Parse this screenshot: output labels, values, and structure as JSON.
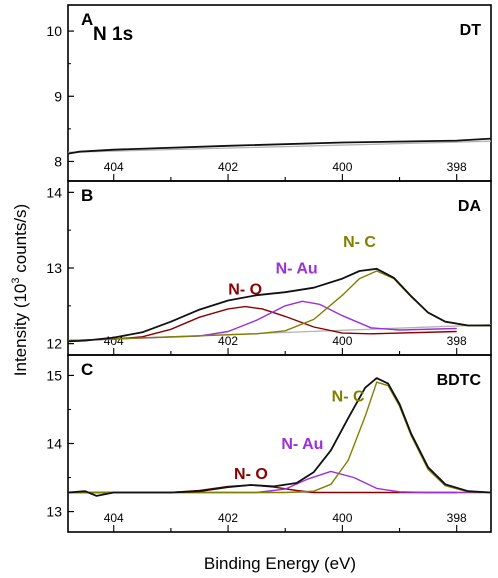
{
  "chart_data": {
    "type": "line",
    "figure_title": "N 1s",
    "xlabel": "Binding Energy (eV)",
    "ylabel_pre": "Intensity (10",
    "ylabel_sup": "3",
    "ylabel_post": " counts/s)",
    "x_reversed": true,
    "xlim": [
      404.8,
      397.4
    ],
    "x_ticks": [
      404,
      402,
      400,
      398
    ],
    "colors": {
      "envelope": "#111111",
      "baseline": "#b4b4b4",
      "N-O": "#8b0000",
      "N-Au": "#9b30d9",
      "N-C": "#808000"
    },
    "panels": [
      {
        "letter": "A",
        "label": "DT",
        "ylim": [
          7.7,
          10.4
        ],
        "y_ticks": [
          8,
          9,
          10
        ],
        "annotations": [],
        "series": [
          {
            "name": "envelope",
            "x": [
              404.8,
              404.6,
              404.0,
              402.0,
              400.0,
              398.0,
              397.4
            ],
            "y": [
              8.12,
              8.15,
              8.18,
              8.24,
              8.29,
              8.32,
              8.35
            ]
          },
          {
            "name": "baseline",
            "x": [
              404.8,
              397.4
            ],
            "y": [
              8.14,
              8.31
            ]
          }
        ]
      },
      {
        "letter": "B",
        "label": "DA",
        "ylim": [
          11.85,
          14.15
        ],
        "y_ticks": [
          12,
          13,
          14
        ],
        "annotations": [
          {
            "text": "N- O",
            "x": 401.7,
            "y": 12.65,
            "color": "#8b0000"
          },
          {
            "text": "N- Au",
            "x": 400.8,
            "y": 12.93,
            "color": "#9b30d9"
          },
          {
            "text": "N- C",
            "x": 399.7,
            "y": 13.28,
            "color": "#808000"
          }
        ],
        "series": [
          {
            "name": "envelope",
            "x": [
              404.8,
              404.5,
              404.0,
              403.5,
              403.0,
              402.5,
              402.0,
              401.5,
              401.0,
              400.5,
              400.0,
              399.7,
              399.4,
              399.1,
              398.8,
              398.5,
              398.2,
              397.8,
              397.4
            ],
            "y": [
              12.03,
              12.04,
              12.08,
              12.15,
              12.29,
              12.45,
              12.57,
              12.64,
              12.68,
              12.74,
              12.86,
              12.96,
              12.99,
              12.87,
              12.63,
              12.41,
              12.29,
              12.24,
              12.24
            ]
          },
          {
            "name": "baseline",
            "x": [
              404.8,
              397.4
            ],
            "y": [
              12.04,
              12.25
            ]
          },
          {
            "name": "N-O",
            "x": [
              404.8,
              404.0,
              403.5,
              403.0,
              402.5,
              402.0,
              401.7,
              401.4,
              401.0,
              400.5,
              400.0,
              399.5,
              398.0
            ],
            "y": [
              12.04,
              12.06,
              12.09,
              12.19,
              12.35,
              12.46,
              12.49,
              12.46,
              12.36,
              12.22,
              12.14,
              12.13,
              12.16
            ]
          },
          {
            "name": "N-Au",
            "x": [
              404.8,
              402.5,
              402.0,
              401.5,
              401.0,
              400.7,
              400.4,
              400.0,
              399.5,
              399.0,
              398.0
            ],
            "y": [
              12.04,
              12.1,
              12.16,
              12.31,
              12.5,
              12.56,
              12.52,
              12.37,
              12.21,
              12.18,
              12.2
            ]
          },
          {
            "name": "N-C",
            "x": [
              404.8,
              401.5,
              401.0,
              400.5,
              400.0,
              399.7,
              399.4,
              399.1,
              398.8,
              398.5,
              398.2,
              397.8,
              397.4
            ],
            "y": [
              12.04,
              12.13,
              12.17,
              12.32,
              12.64,
              12.86,
              12.96,
              12.86,
              12.62,
              12.41,
              12.29,
              12.24,
              12.24
            ]
          }
        ]
      },
      {
        "letter": "C",
        "label": "BDTC",
        "ylim": [
          12.7,
          15.3
        ],
        "y_ticks": [
          13,
          14,
          15
        ],
        "annotations": [
          {
            "text": "N- O",
            "x": 401.6,
            "y": 13.48,
            "color": "#8b0000"
          },
          {
            "text": "N- Au",
            "x": 400.7,
            "y": 13.92,
            "color": "#9b30d9"
          },
          {
            "text": "N- C",
            "x": 399.9,
            "y": 14.62,
            "color": "#808000"
          }
        ],
        "series": [
          {
            "name": "envelope",
            "x": [
              404.8,
              404.5,
              404.3,
              404.0,
              403.0,
              402.5,
              402.0,
              401.6,
              401.2,
              400.8,
              400.5,
              400.2,
              399.9,
              399.6,
              399.4,
              399.2,
              399.0,
              398.8,
              398.5,
              398.2,
              397.8,
              397.4
            ],
            "y": [
              13.28,
              13.3,
              13.23,
              13.28,
              13.28,
              13.3,
              13.36,
              13.39,
              13.37,
              13.42,
              13.58,
              13.9,
              14.37,
              14.82,
              14.96,
              14.88,
              14.58,
              14.15,
              13.65,
              13.4,
              13.3,
              13.28
            ]
          },
          {
            "name": "baseline",
            "x": [
              404.8,
              397.4
            ],
            "y": [
              13.28,
              13.28
            ]
          },
          {
            "name": "N-O",
            "x": [
              404.8,
              403.0,
              402.5,
              402.0,
              401.6,
              401.2,
              400.8,
              400.5,
              398.0
            ],
            "y": [
              13.28,
              13.28,
              13.31,
              13.37,
              13.39,
              13.36,
              13.31,
              13.28,
              13.28
            ]
          },
          {
            "name": "N-Au",
            "x": [
              404.8,
              401.5,
              401.0,
              400.6,
              400.2,
              399.8,
              399.4,
              399.0,
              398.5,
              397.4
            ],
            "y": [
              13.28,
              13.28,
              13.33,
              13.48,
              13.59,
              13.5,
              13.34,
              13.29,
              13.28,
              13.28
            ]
          },
          {
            "name": "N-C",
            "x": [
              404.8,
              401.0,
              400.5,
              400.2,
              399.9,
              399.6,
              399.4,
              399.2,
              399.0,
              398.8,
              398.5,
              398.2,
              397.8,
              397.4
            ],
            "y": [
              13.28,
              13.28,
              13.3,
              13.4,
              13.75,
              14.4,
              14.9,
              14.85,
              14.55,
              14.12,
              13.62,
              13.38,
              13.29,
              13.28
            ]
          }
        ]
      }
    ]
  }
}
